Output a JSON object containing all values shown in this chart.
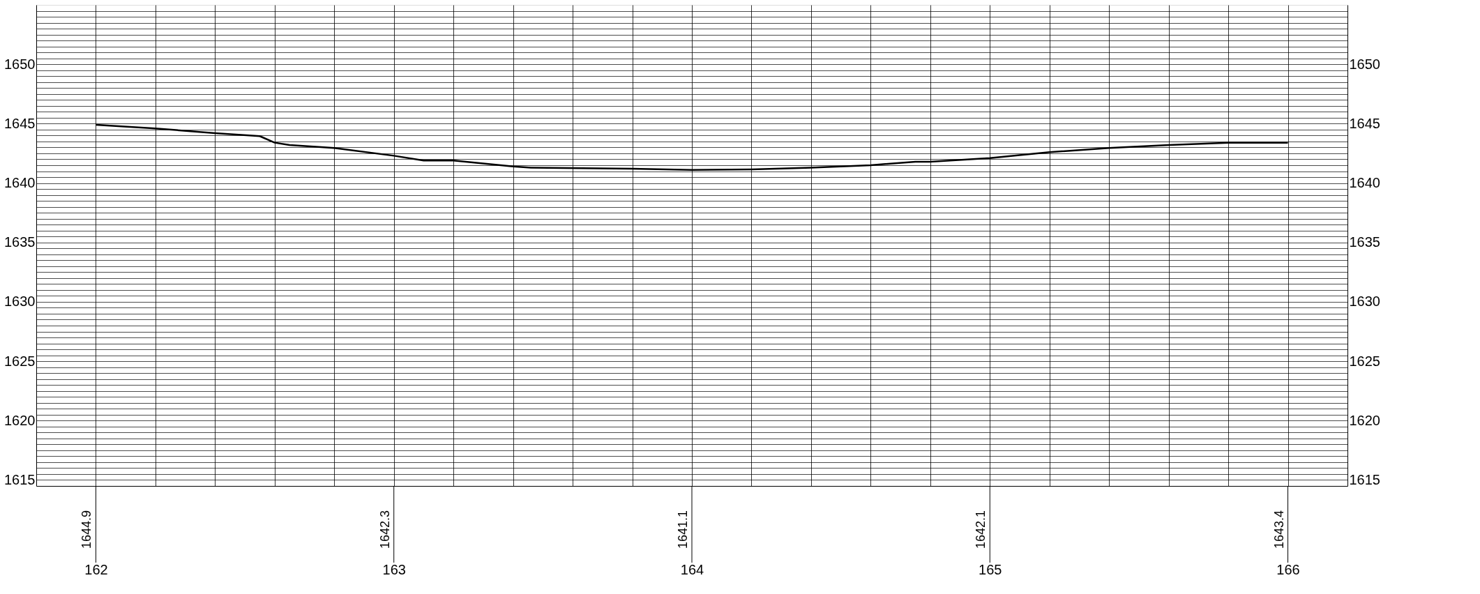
{
  "chart_data": {
    "type": "line",
    "x": [
      162.0,
      162.2,
      162.4,
      162.55,
      162.6,
      162.65,
      162.8,
      163.0,
      163.1,
      163.2,
      163.4,
      163.46,
      163.8,
      164.0,
      164.2,
      164.4,
      164.6,
      164.75,
      164.8,
      165.0,
      165.2,
      165.4,
      165.6,
      165.8,
      166.0
    ],
    "series": [
      {
        "color": "#000000",
        "values": [
          1644.9,
          1644.6,
          1644.2,
          1643.95,
          1643.4,
          1643.2,
          1642.95,
          1642.3,
          1641.9,
          1641.9,
          1641.4,
          1641.3,
          1641.2,
          1641.1,
          1641.15,
          1641.3,
          1641.5,
          1641.8,
          1641.8,
          1642.1,
          1642.6,
          1642.95,
          1643.2,
          1643.4,
          1643.4
        ]
      }
    ],
    "annotations": [
      "1644.9",
      "1642.3",
      "1641.1",
      "1642.1",
      "1643.4"
    ],
    "xlim": [
      161.8,
      166.2
    ],
    "xticks": [
      162,
      {
        "value": 162.2,
        "label": null
      },
      {
        "value": 162.4,
        "label": null
      },
      {
        "value": 162.6,
        "label": null
      },
      {
        "value": 162.8,
        "label": null
      },
      163,
      {
        "value": 163.2,
        "label": null
      },
      {
        "value": 163.4,
        "label": null
      },
      {
        "value": 163.6,
        "label": null
      },
      {
        "value": 163.8,
        "label": null
      },
      164,
      {
        "value": 164.2,
        "label": null
      },
      {
        "value": 164.4,
        "label": null
      },
      {
        "value": 164.6,
        "label": null
      },
      {
        "value": 164.8,
        "label": null
      },
      165,
      {
        "value": 165.2,
        "label": null
      },
      {
        "value": 165.4,
        "label": null
      },
      {
        "value": 165.6,
        "label": null
      },
      {
        "value": 165.8,
        "label": null
      },
      166
    ],
    "ylim": [
      1614.5,
      1655
    ],
    "yticks": [
      1615,
      {
        "value": 1615.5,
        "label": null
      },
      {
        "value": 1616,
        "label": null
      },
      {
        "value": 1616.5,
        "label": null
      },
      {
        "value": 1617,
        "label": null
      },
      {
        "value": 1617.5,
        "label": null
      },
      {
        "value": 1618,
        "label": null
      },
      {
        "value": 1618.5,
        "label": null
      },
      {
        "value": 1619,
        "label": null
      },
      {
        "value": 1619.5,
        "label": null
      },
      1620,
      {
        "value": 1620.5,
        "label": null
      },
      {
        "value": 1621,
        "label": null
      },
      {
        "value": 1621.5,
        "label": null
      },
      {
        "value": 1622,
        "label": null
      },
      {
        "value": 1622.5,
        "label": null
      },
      {
        "value": 1623,
        "label": null
      },
      {
        "value": 1623.5,
        "label": null
      },
      {
        "value": 1624,
        "label": null
      },
      {
        "value": 1624.5,
        "label": null
      },
      1625,
      {
        "value": 1625.5,
        "label": null
      },
      {
        "value": 1626,
        "label": null
      },
      {
        "value": 1626.5,
        "label": null
      },
      {
        "value": 1627,
        "label": null
      },
      {
        "value": 1627.5,
        "label": null
      },
      {
        "value": 1628,
        "label": null
      },
      {
        "value": 1628.5,
        "label": null
      },
      {
        "value": 1629,
        "label": null
      },
      {
        "value": 1629.5,
        "label": null
      },
      1630,
      {
        "value": 1630.5,
        "label": null
      },
      {
        "value": 1631,
        "label": null
      },
      {
        "value": 1631.5,
        "label": null
      },
      {
        "value": 1632,
        "label": null
      },
      {
        "value": 1632.5,
        "label": null
      },
      {
        "value": 1633,
        "label": null
      },
      {
        "value": 1633.5,
        "label": null
      },
      {
        "value": 1634,
        "label": null
      },
      {
        "value": 1634.5,
        "label": null
      },
      1635,
      {
        "value": 1635.5,
        "label": null
      },
      {
        "value": 1636,
        "label": null
      },
      {
        "value": 1636.5,
        "label": null
      },
      {
        "value": 1637,
        "label": null
      },
      {
        "value": 1637.5,
        "label": null
      },
      {
        "value": 1638,
        "label": null
      },
      {
        "value": 1638.5,
        "label": null
      },
      {
        "value": 1639,
        "label": null
      },
      {
        "value": 1639.5,
        "label": null
      },
      1640,
      {
        "value": 1640.5,
        "label": null
      },
      {
        "value": 1641,
        "label": null
      },
      {
        "value": 1641.5,
        "label": null
      },
      {
        "value": 1642,
        "label": null
      },
      {
        "value": 1642.5,
        "label": null
      },
      {
        "value": 1643,
        "label": null
      },
      {
        "value": 1643.5,
        "label": null
      },
      {
        "value": 1644,
        "label": null
      },
      {
        "value": 1644.5,
        "label": null
      },
      1645,
      {
        "value": 1645.5,
        "label": null
      },
      {
        "value": 1646,
        "label": null
      },
      {
        "value": 1646.5,
        "label": null
      },
      {
        "value": 1647,
        "label": null
      },
      {
        "value": 1647.5,
        "label": null
      },
      {
        "value": 1648,
        "label": null
      },
      {
        "value": 1648.5,
        "label": null
      },
      {
        "value": 1649,
        "label": null
      },
      {
        "value": 1649.5,
        "label": null
      },
      1650,
      {
        "value": 1650.5,
        "label": null
      },
      {
        "value": 1651,
        "label": null
      },
      {
        "value": 1651.5,
        "label": null
      },
      {
        "value": 1652,
        "label": null
      },
      {
        "value": 1652.5,
        "label": null
      },
      {
        "value": 1653,
        "label": null
      },
      {
        "value": 1653.5,
        "label": null
      },
      {
        "value": 1654,
        "label": null
      },
      {
        "value": 1654.5,
        "label": null
      }
    ],
    "y2lim": [
      1614.5,
      1655
    ],
    "y2ticks": [
      1615,
      1620,
      1625,
      1630,
      1635,
      1640,
      1645,
      1650
    ],
    "grid": true
  }
}
